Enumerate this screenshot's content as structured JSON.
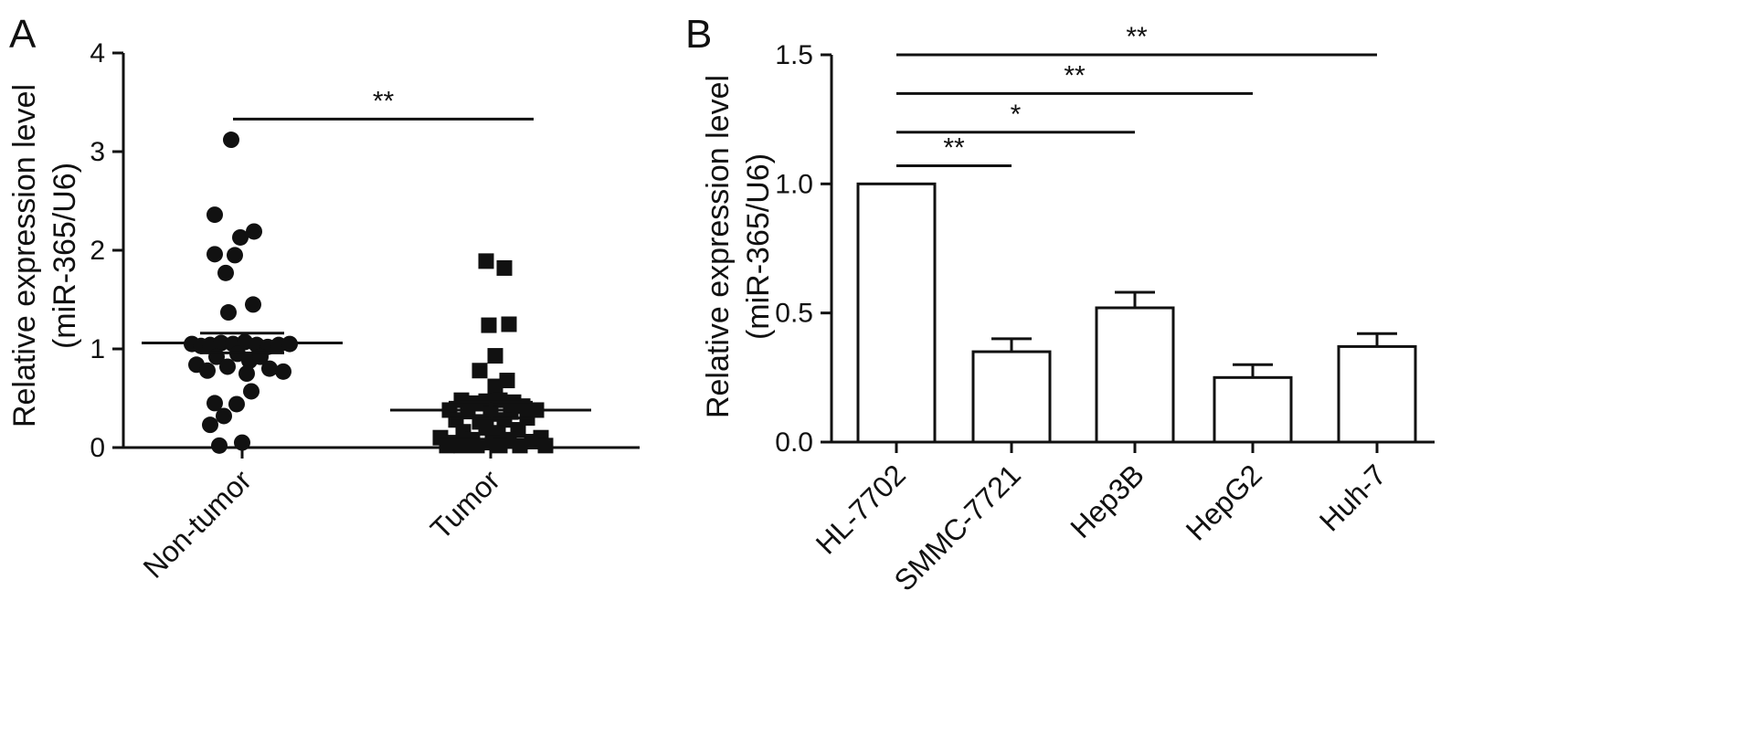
{
  "figure": {
    "panels": [
      "A",
      "B"
    ]
  },
  "chart_data": [
    {
      "panel": "A",
      "type": "scatter",
      "ylabel_line1": "Relative expression level",
      "ylabel_line2": "(miR-365/U6)",
      "ylim": [
        0,
        4
      ],
      "yticks": [
        0,
        1,
        2,
        3,
        4
      ],
      "categories": [
        "Non-tumor",
        "Tumor"
      ],
      "grid": false,
      "series": [
        {
          "category": "Non-tumor",
          "marker": "circle",
          "mean": 1.06,
          "sem": 0.1,
          "points": [
            {
              "x": -0.12,
              "y": 3.12
            },
            {
              "x": -0.3,
              "y": 2.36
            },
            {
              "x": 0.13,
              "y": 2.19
            },
            {
              "x": -0.02,
              "y": 2.13
            },
            {
              "x": -0.3,
              "y": 1.96
            },
            {
              "x": -0.08,
              "y": 1.95
            },
            {
              "x": -0.18,
              "y": 1.77
            },
            {
              "x": 0.12,
              "y": 1.45
            },
            {
              "x": -0.15,
              "y": 1.37
            },
            {
              "x": -0.55,
              "y": 1.05
            },
            {
              "x": -0.45,
              "y": 1.03
            },
            {
              "x": -0.35,
              "y": 1.04
            },
            {
              "x": -0.23,
              "y": 1.06
            },
            {
              "x": -0.1,
              "y": 1.05
            },
            {
              "x": 0.03,
              "y": 1.07
            },
            {
              "x": 0.16,
              "y": 1.04
            },
            {
              "x": 0.28,
              "y": 1.02
            },
            {
              "x": 0.4,
              "y": 1.04
            },
            {
              "x": 0.52,
              "y": 1.05
            },
            {
              "x": -0.5,
              "y": 0.84
            },
            {
              "x": -0.28,
              "y": 0.92
            },
            {
              "x": -0.05,
              "y": 0.95
            },
            {
              "x": 0.08,
              "y": 0.88
            },
            {
              "x": 0.2,
              "y": 0.92
            },
            {
              "x": -0.38,
              "y": 0.78
            },
            {
              "x": -0.16,
              "y": 0.82
            },
            {
              "x": 0.05,
              "y": 0.75
            },
            {
              "x": 0.3,
              "y": 0.8
            },
            {
              "x": 0.45,
              "y": 0.77
            },
            {
              "x": -0.3,
              "y": 0.45
            },
            {
              "x": -0.06,
              "y": 0.44
            },
            {
              "x": 0.1,
              "y": 0.57
            },
            {
              "x": -0.2,
              "y": 0.32
            },
            {
              "x": -0.35,
              "y": 0.23
            },
            {
              "x": -0.25,
              "y": 0.02
            },
            {
              "x": 0.0,
              "y": 0.05
            }
          ]
        },
        {
          "category": "Tumor",
          "marker": "square",
          "mean": 0.38,
          "sem": 0.08,
          "points": [
            {
              "x": -0.05,
              "y": 1.89
            },
            {
              "x": 0.15,
              "y": 1.82
            },
            {
              "x": -0.02,
              "y": 1.24
            },
            {
              "x": 0.2,
              "y": 1.25
            },
            {
              "x": 0.05,
              "y": 0.93
            },
            {
              "x": -0.12,
              "y": 0.78
            },
            {
              "x": 0.18,
              "y": 0.68
            },
            {
              "x": 0.05,
              "y": 0.62
            },
            {
              "x": -0.32,
              "y": 0.48
            },
            {
              "x": -0.2,
              "y": 0.45
            },
            {
              "x": -0.05,
              "y": 0.47
            },
            {
              "x": 0.1,
              "y": 0.48
            },
            {
              "x": 0.25,
              "y": 0.46
            },
            {
              "x": 0.35,
              "y": 0.42
            },
            {
              "x": -0.45,
              "y": 0.38
            },
            {
              "x": -0.25,
              "y": 0.38
            },
            {
              "x": 0.0,
              "y": 0.34
            },
            {
              "x": 0.22,
              "y": 0.36
            },
            {
              "x": 0.5,
              "y": 0.38
            },
            {
              "x": -0.38,
              "y": 0.28
            },
            {
              "x": -0.12,
              "y": 0.26
            },
            {
              "x": 0.15,
              "y": 0.28
            },
            {
              "x": 0.4,
              "y": 0.3
            },
            {
              "x": -0.3,
              "y": 0.16
            },
            {
              "x": -0.05,
              "y": 0.2
            },
            {
              "x": 0.08,
              "y": 0.15
            },
            {
              "x": 0.3,
              "y": 0.18
            },
            {
              "x": -0.55,
              "y": 0.1
            },
            {
              "x": -0.42,
              "y": 0.05
            },
            {
              "x": -0.2,
              "y": 0.08
            },
            {
              "x": 0.02,
              "y": 0.05
            },
            {
              "x": 0.2,
              "y": 0.08
            },
            {
              "x": 0.45,
              "y": 0.06
            },
            {
              "x": 0.55,
              "y": 0.1
            },
            {
              "x": -0.48,
              "y": 0.02
            },
            {
              "x": -0.32,
              "y": 0.02
            },
            {
              "x": -0.15,
              "y": 0.02
            },
            {
              "x": 0.1,
              "y": 0.02
            },
            {
              "x": 0.32,
              "y": 0.02
            },
            {
              "x": 0.6,
              "y": 0.02
            }
          ]
        }
      ],
      "significance": [
        {
          "from": "Non-tumor",
          "to": "Tumor",
          "y": 3.33,
          "label": "**"
        }
      ]
    },
    {
      "panel": "B",
      "type": "bar",
      "ylabel_line1": "Relative expression level",
      "ylabel_line2": "(miR-365/U6)",
      "ylim": [
        0,
        1.5
      ],
      "yticks": [
        0.0,
        0.5,
        1.0,
        1.5
      ],
      "ytick_labels": [
        "0.0",
        "0.5",
        "1.0",
        "1.5"
      ],
      "categories": [
        "HL-7702",
        "SMMC-7721",
        "Hep3B",
        "HepG2",
        "Huh-7"
      ],
      "values": [
        1.0,
        0.35,
        0.52,
        0.25,
        0.37
      ],
      "errors": [
        0,
        0.05,
        0.06,
        0.05,
        0.05
      ],
      "grid": false,
      "significance": [
        {
          "from": "HL-7702",
          "to": "SMMC-7721",
          "y": 1.07,
          "label": "**"
        },
        {
          "from": "HL-7702",
          "to": "Hep3B",
          "y": 1.2,
          "label": "*"
        },
        {
          "from": "HL-7702",
          "to": "HepG2",
          "y": 1.35,
          "label": "**"
        },
        {
          "from": "HL-7702",
          "to": "Huh-7",
          "y": 1.5,
          "label": "**"
        }
      ]
    }
  ]
}
